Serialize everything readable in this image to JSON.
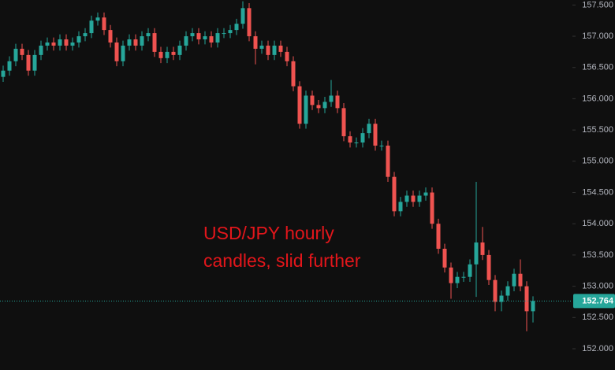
{
  "chart_data": {
    "type": "candlestick",
    "annotation": [
      "USD/JPY hourly",
      "candles, slid further"
    ],
    "open": [
      156.35,
      156.45,
      156.6,
      156.8,
      156.7,
      156.45,
      156.7,
      156.85,
      156.9,
      156.85,
      156.95,
      156.85,
      156.9,
      157.0,
      157.05,
      157.25,
      157.3,
      157.1,
      156.9,
      156.6,
      156.85,
      156.95,
      156.85,
      157.0,
      157.05,
      156.75,
      156.65,
      156.75,
      156.7,
      156.85,
      157.0,
      157.05,
      156.95,
      157.0,
      156.9,
      157.05,
      157.05,
      157.1,
      157.2,
      157.45,
      157.0,
      156.8,
      156.85,
      156.7,
      156.85,
      156.75,
      156.6,
      156.2,
      155.6,
      156.05,
      155.9,
      155.85,
      155.95,
      156.05,
      155.85,
      155.4,
      155.3,
      155.3,
      155.45,
      155.6,
      155.25,
      155.25,
      154.75,
      154.2,
      154.35,
      154.45,
      154.35,
      154.45,
      154.5,
      154.0,
      153.6,
      153.3,
      153.05,
      153.15,
      153.15,
      153.35,
      153.7,
      153.5,
      153.1,
      152.75,
      152.85,
      153.0,
      153.2,
      153.0,
      152.6
    ],
    "high": [
      156.53,
      156.68,
      156.88,
      156.88,
      156.78,
      156.78,
      156.93,
      156.98,
      156.98,
      157.03,
      157.03,
      156.98,
      157.08,
      157.13,
      157.33,
      157.38,
      157.38,
      157.18,
      156.98,
      156.93,
      157.03,
      157.03,
      157.08,
      157.13,
      157.13,
      156.83,
      156.83,
      156.83,
      156.93,
      157.08,
      157.13,
      157.13,
      157.08,
      157.08,
      157.13,
      157.13,
      157.18,
      157.28,
      157.56,
      157.53,
      157.08,
      156.93,
      156.93,
      156.93,
      156.93,
      156.83,
      156.68,
      156.28,
      156.13,
      156.13,
      155.98,
      156.03,
      156.3,
      156.13,
      155.93,
      155.48,
      155.38,
      155.53,
      155.68,
      155.68,
      155.33,
      155.33,
      154.83,
      154.43,
      154.53,
      154.53,
      154.53,
      154.58,
      154.58,
      154.08,
      153.68,
      153.38,
      153.23,
      153.23,
      153.43,
      154.67,
      153.95,
      153.58,
      153.18,
      152.93,
      153.08,
      153.28,
      153.43,
      153.08,
      152.84
    ],
    "low": [
      156.27,
      156.37,
      156.52,
      156.62,
      156.37,
      156.37,
      156.62,
      156.77,
      156.77,
      156.77,
      156.77,
      156.77,
      156.82,
      156.92,
      156.97,
      157.17,
      157.02,
      156.82,
      156.52,
      156.52,
      156.77,
      156.77,
      156.77,
      156.92,
      156.67,
      156.57,
      156.57,
      156.62,
      156.62,
      156.77,
      156.92,
      156.87,
      156.87,
      156.82,
      156.82,
      156.97,
      156.97,
      157.02,
      157.12,
      156.92,
      156.55,
      156.72,
      156.62,
      156.62,
      156.67,
      156.52,
      156.12,
      155.52,
      155.52,
      155.82,
      155.77,
      155.77,
      155.87,
      155.77,
      155.32,
      155.22,
      155.22,
      155.22,
      155.37,
      155.17,
      155.17,
      154.67,
      154.12,
      154.12,
      154.27,
      154.27,
      154.27,
      154.37,
      153.92,
      153.52,
      153.22,
      152.8,
      152.97,
      153.07,
      153.07,
      152.83,
      153.42,
      153.02,
      152.6,
      152.6,
      152.77,
      152.92,
      152.92,
      152.28,
      152.42
    ],
    "close": [
      156.45,
      156.6,
      156.8,
      156.7,
      156.45,
      156.7,
      156.85,
      156.9,
      156.85,
      156.95,
      156.85,
      156.9,
      157.0,
      157.05,
      157.25,
      157.3,
      157.1,
      156.9,
      156.6,
      156.85,
      156.95,
      156.85,
      157.0,
      157.05,
      156.75,
      156.65,
      156.75,
      156.7,
      156.85,
      157.0,
      157.05,
      156.95,
      157.0,
      156.9,
      157.05,
      157.05,
      157.1,
      157.2,
      157.45,
      157.0,
      156.8,
      156.85,
      156.7,
      156.85,
      156.75,
      156.6,
      156.2,
      155.6,
      156.05,
      155.9,
      155.85,
      155.95,
      156.05,
      155.85,
      155.4,
      155.3,
      155.3,
      155.45,
      155.6,
      155.25,
      155.25,
      154.75,
      154.2,
      154.35,
      154.45,
      154.35,
      154.45,
      154.5,
      154.0,
      153.6,
      153.3,
      153.05,
      153.15,
      153.15,
      153.35,
      153.7,
      153.5,
      153.1,
      152.75,
      152.85,
      153.0,
      153.2,
      153.0,
      152.6,
      152.764
    ],
    "up_color": "#26a69a",
    "down_color": "#ef5350",
    "last_price": 152.764,
    "ylim": [
      151.66,
      157.58
    ],
    "yticks": [
      {
        "value": 152.0,
        "label": "152.000"
      },
      {
        "value": 152.5,
        "label": "152.500"
      },
      {
        "value": 153.0,
        "label": "153.000"
      },
      {
        "value": 153.5,
        "label": "153.500"
      },
      {
        "value": 154.0,
        "label": "154.000"
      },
      {
        "value": 154.5,
        "label": "154.500"
      },
      {
        "value": 155.0,
        "label": "155.000"
      },
      {
        "value": 155.5,
        "label": "155.500"
      },
      {
        "value": 156.0,
        "label": "156.000"
      },
      {
        "value": 156.5,
        "label": "156.500"
      },
      {
        "value": 157.0,
        "label": "157.000"
      },
      {
        "value": 157.5,
        "label": "157.500"
      }
    ],
    "grid": false
  }
}
